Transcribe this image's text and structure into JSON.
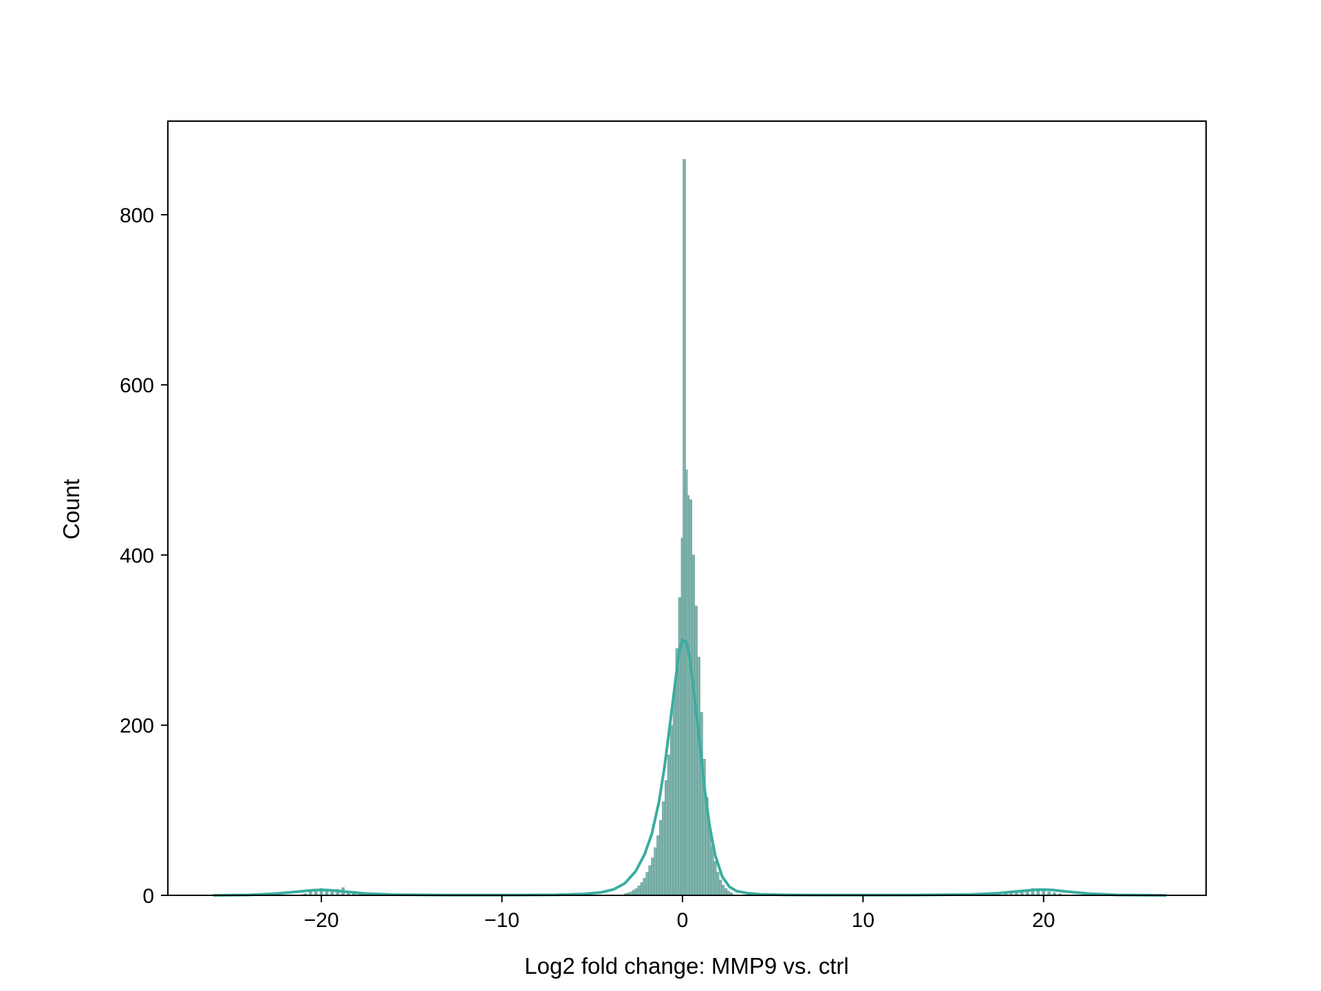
{
  "chart_data": {
    "type": "histogram",
    "title": "",
    "xlabel": "Log2 fold change: MMP9 vs. ctrl",
    "ylabel": "Count",
    "xlim": [
      -28.5,
      29
    ],
    "ylim": [
      0,
      910
    ],
    "xticks": [
      -20,
      -10,
      0,
      10,
      20
    ],
    "xtick_labels": [
      "−20",
      "−10",
      "0",
      "10",
      "20"
    ],
    "yticks": [
      0,
      200,
      400,
      600,
      800
    ],
    "ytick_labels": [
      "0",
      "200",
      "400",
      "600",
      "800"
    ],
    "grid": false,
    "legend": "none",
    "colors": {
      "bar_fill": "#7fb3ac",
      "bar_edge": "#5f9a93",
      "kde_line": "#3aada0"
    },
    "histogram": {
      "bin_width": 0.15,
      "bins": [
        {
          "x": -20.9,
          "count": 2
        },
        {
          "x": -20.6,
          "count": 4
        },
        {
          "x": -20.3,
          "count": 6
        },
        {
          "x": -20.0,
          "count": 8
        },
        {
          "x": -19.7,
          "count": 6
        },
        {
          "x": -19.4,
          "count": 5
        },
        {
          "x": -19.1,
          "count": 7
        },
        {
          "x": -18.8,
          "count": 9
        },
        {
          "x": -18.5,
          "count": 4
        },
        {
          "x": -18.2,
          "count": 3
        },
        {
          "x": -17.9,
          "count": 2
        },
        {
          "x": -3.15,
          "count": 2
        },
        {
          "x": -3.0,
          "count": 3
        },
        {
          "x": -2.85,
          "count": 4
        },
        {
          "x": -2.7,
          "count": 6
        },
        {
          "x": -2.55,
          "count": 8
        },
        {
          "x": -2.4,
          "count": 11
        },
        {
          "x": -2.25,
          "count": 15
        },
        {
          "x": -2.1,
          "count": 20
        },
        {
          "x": -1.95,
          "count": 27
        },
        {
          "x": -1.8,
          "count": 35
        },
        {
          "x": -1.65,
          "count": 44
        },
        {
          "x": -1.5,
          "count": 56
        },
        {
          "x": -1.35,
          "count": 70
        },
        {
          "x": -1.2,
          "count": 88
        },
        {
          "x": -1.05,
          "count": 110
        },
        {
          "x": -0.9,
          "count": 135
        },
        {
          "x": -0.75,
          "count": 165
        },
        {
          "x": -0.6,
          "count": 200
        },
        {
          "x": -0.45,
          "count": 240
        },
        {
          "x": -0.3,
          "count": 290
        },
        {
          "x": -0.15,
          "count": 350
        },
        {
          "x": 0.0,
          "count": 420
        },
        {
          "x": 0.1,
          "count": 865
        },
        {
          "x": 0.2,
          "count": 500
        },
        {
          "x": 0.3,
          "count": 470
        },
        {
          "x": 0.45,
          "count": 465
        },
        {
          "x": 0.6,
          "count": 400
        },
        {
          "x": 0.75,
          "count": 340
        },
        {
          "x": 0.9,
          "count": 280
        },
        {
          "x": 1.05,
          "count": 215
        },
        {
          "x": 1.2,
          "count": 160
        },
        {
          "x": 1.35,
          "count": 115
        },
        {
          "x": 1.5,
          "count": 82
        },
        {
          "x": 1.65,
          "count": 58
        },
        {
          "x": 1.8,
          "count": 40
        },
        {
          "x": 1.95,
          "count": 27
        },
        {
          "x": 2.1,
          "count": 18
        },
        {
          "x": 2.25,
          "count": 12
        },
        {
          "x": 2.4,
          "count": 8
        },
        {
          "x": 2.55,
          "count": 5
        },
        {
          "x": 2.7,
          "count": 3
        },
        {
          "x": 17.9,
          "count": 2
        },
        {
          "x": 18.2,
          "count": 3
        },
        {
          "x": 18.5,
          "count": 4
        },
        {
          "x": 18.8,
          "count": 6
        },
        {
          "x": 19.1,
          "count": 7
        },
        {
          "x": 19.4,
          "count": 8
        },
        {
          "x": 19.7,
          "count": 7
        },
        {
          "x": 20.0,
          "count": 5
        },
        {
          "x": 20.3,
          "count": 4
        },
        {
          "x": 20.6,
          "count": 3
        },
        {
          "x": 20.9,
          "count": 2
        }
      ]
    },
    "kde": {
      "x": [
        -26,
        -24,
        -22.5,
        -21.5,
        -20.5,
        -20,
        -19.5,
        -18.5,
        -17.5,
        -16,
        -13,
        -10,
        -7,
        -5.5,
        -4.5,
        -3.8,
        -3.2,
        -2.6,
        -2.1,
        -1.7,
        -1.3,
        -1.0,
        -0.7,
        -0.4,
        -0.2,
        0.0,
        0.2,
        0.4,
        0.6,
        0.9,
        1.2,
        1.5,
        1.8,
        2.2,
        2.6,
        3.0,
        3.6,
        4.3,
        5.5,
        7,
        10,
        13,
        16,
        17.5,
        18.5,
        19.5,
        20,
        20.5,
        21.5,
        22.5,
        24,
        26.8
      ],
      "y": [
        0,
        0.5,
        2,
        4,
        6,
        6.5,
        6,
        4,
        2,
        0.8,
        0.3,
        0.3,
        0.6,
        1.5,
        3.5,
        7,
        14,
        28,
        48,
        72,
        110,
        150,
        200,
        250,
        285,
        300,
        298,
        280,
        245,
        190,
        130,
        82,
        48,
        22,
        10,
        5,
        2.5,
        1.2,
        0.6,
        0.4,
        0.3,
        0.4,
        1,
        2.5,
        4.5,
        6.5,
        6.8,
        6.2,
        4,
        2,
        0.5,
        0
      ]
    }
  }
}
